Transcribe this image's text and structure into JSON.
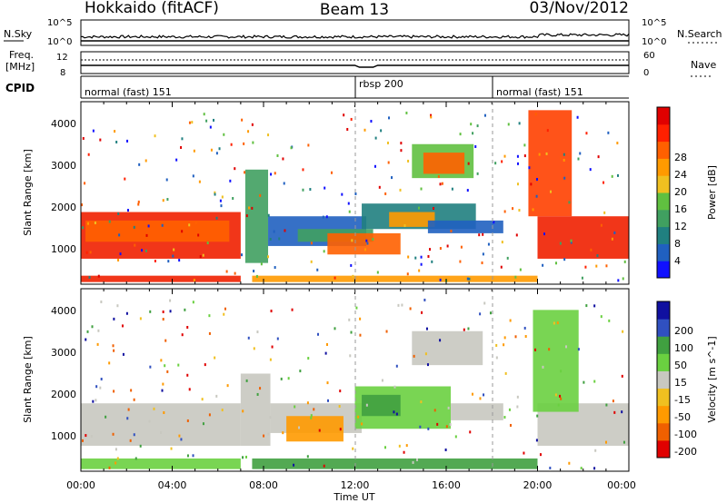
{
  "header": {
    "station": "Hokkaido (fitACF)",
    "beam": "Beam 13",
    "date": "03/Nov/2012"
  },
  "left_labels": {
    "nsky": "N.Sky",
    "freq": "Freq.",
    "freq_unit": "[MHz]",
    "cpid": "CPID"
  },
  "right_labels": {
    "nsearch": "N.Search",
    "nave": "Nave"
  },
  "colors": {
    "velocity_scale": [
      "#e00000",
      "#f06000",
      "#ff9a00",
      "#f0c020",
      "#c8c8c0",
      "#6ad040",
      "#40a040",
      "#3050c0",
      "#1010a0"
    ],
    "power_scale": [
      "#1010ff",
      "#2060c0",
      "#208080",
      "#40a060",
      "#60c040",
      "#f0c020",
      "#ff9a00",
      "#ff6000",
      "#ff2000",
      "#e00000"
    ]
  },
  "chart_data": [
    {
      "type": "line",
      "title": "",
      "left_axis": {
        "label": "N.Sky",
        "ticks": [
          "10^5",
          "10^0"
        ]
      },
      "right_axis": {
        "label": "N.Search",
        "ticks": [
          "10^5",
          "10^0"
        ]
      },
      "x": [
        "00:00",
        "04:00",
        "08:00",
        "12:00",
        "16:00",
        "20:00",
        "00:00"
      ]
    },
    {
      "type": "line",
      "title": "",
      "left_axis": {
        "label": "Freq. [MHz]",
        "ticks": [
          "12",
          "8"
        ]
      },
      "right_axis": {
        "label": "Nave",
        "ticks": [
          "60",
          "0"
        ]
      },
      "x": [
        "00:00",
        "04:00",
        "08:00",
        "12:00",
        "16:00",
        "20:00",
        "00:00"
      ]
    },
    {
      "type": "table",
      "label": "CPID",
      "segments": [
        {
          "start": "00:00",
          "end": "12:00",
          "name": "normal (fast) 151"
        },
        {
          "start": "12:00",
          "end": "18:00",
          "name": "rbsp 200"
        },
        {
          "start": "18:00",
          "end": "24:00",
          "name": "normal (fast) 151"
        }
      ]
    },
    {
      "type": "heatmap",
      "ylabel": "Slant Range [km]",
      "yticks": [
        "1000",
        "2000",
        "3000",
        "4000"
      ],
      "ylim": [
        200,
        4500
      ],
      "x": [
        "00:00",
        "04:00",
        "08:00",
        "12:00",
        "16:00",
        "20:00",
        "00:00"
      ],
      "colorbar": {
        "label": "Power [dB]",
        "ticks": [
          "28",
          "24",
          "20",
          "16",
          "12",
          "8",
          "4"
        ]
      }
    },
    {
      "type": "heatmap",
      "ylabel": "Slant Range [km]",
      "yticks": [
        "1000",
        "2000",
        "3000",
        "4000"
      ],
      "ylim": [
        200,
        4500
      ],
      "x": [
        "00:00",
        "04:00",
        "08:00",
        "12:00",
        "16:00",
        "20:00",
        "00:00"
      ],
      "xlabel": "Time UT",
      "colorbar": {
        "label": "Velocity [m s^-1]",
        "ticks": [
          "200",
          "100",
          "50",
          "15",
          "-15",
          "-50",
          "-100",
          "-200"
        ]
      }
    }
  ]
}
